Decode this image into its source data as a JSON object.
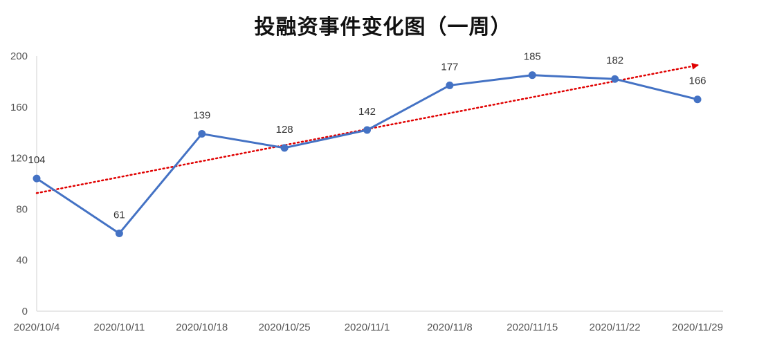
{
  "chart_data": {
    "type": "line",
    "title": "投融资事件变化图（一周）",
    "xlabel": "",
    "ylabel": "",
    "categories": [
      "2020/10/4",
      "2020/10/11",
      "2020/10/18",
      "2020/10/25",
      "2020/11/1",
      "2020/11/8",
      "2020/11/15",
      "2020/11/22",
      "2020/11/29"
    ],
    "series": [
      {
        "values": [
          104,
          61,
          139,
          128,
          142,
          177,
          185,
          182,
          166
        ],
        "color": "#4472C4",
        "marker": "circle",
        "data_labels": true
      }
    ],
    "trendline": {
      "type": "linear",
      "color": "#E00000",
      "style": "dotted",
      "arrow": true
    },
    "ylim": [
      0,
      200
    ],
    "yticks": [
      0,
      40,
      80,
      120,
      160,
      200
    ],
    "grid": false,
    "legend": "none"
  }
}
